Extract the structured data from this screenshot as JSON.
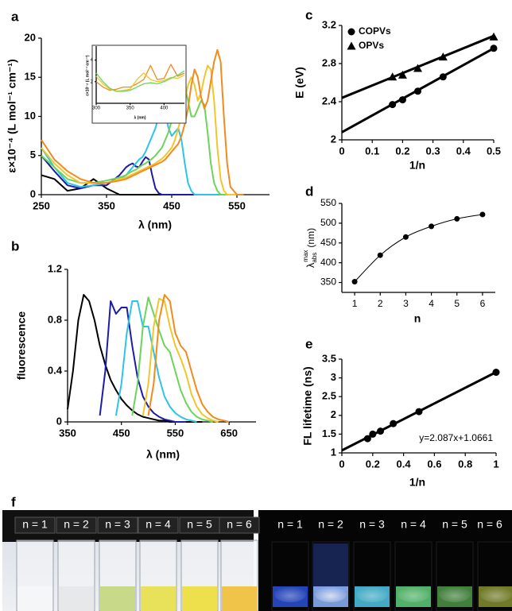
{
  "chart_data": [
    {
      "type": "line",
      "panel": "a",
      "xlabel": "λ (nm)",
      "ylabel": "ε×10⁻⁴ (L mol⁻¹ cm⁻¹)",
      "xlim": [
        250,
        600
      ],
      "xticks": [
        250,
        350,
        450,
        550
      ],
      "ylim": [
        0,
        20
      ],
      "yticks": [
        0,
        5,
        10,
        15,
        20
      ],
      "x": [
        250,
        270,
        290,
        310,
        330,
        350,
        370,
        380,
        385,
        390,
        395,
        400,
        405,
        410,
        415,
        420,
        425,
        430,
        435,
        440,
        445,
        450,
        455,
        460,
        465,
        470,
        475,
        480,
        485,
        490,
        495,
        500,
        505,
        510,
        515,
        520,
        525,
        530,
        535,
        540,
        550,
        560
      ],
      "series": [
        {
          "color": "#000000",
          "values": [
            2.5,
            2,
            0.5,
            0.8,
            2,
            0.8,
            0,
            0,
            0,
            0,
            0,
            0,
            0,
            0,
            0,
            0,
            0,
            0,
            0,
            0,
            0,
            0,
            0,
            0,
            0,
            0,
            0,
            0,
            0,
            0,
            0,
            0,
            0,
            0,
            0,
            0,
            0,
            0,
            0,
            0,
            0,
            0
          ]
        },
        {
          "color": "#1c1ca8",
          "values": [
            5,
            3,
            1.2,
            0.8,
            1.2,
            1.2,
            2.5,
            3.5,
            3.8,
            4,
            3.6,
            3.5,
            4.2,
            4.8,
            4.5,
            2.5,
            0.8,
            0.2,
            0,
            0,
            0,
            0,
            0,
            0,
            0,
            0,
            0,
            0,
            0,
            0,
            0,
            0,
            0,
            0,
            0,
            0,
            0,
            0,
            0,
            0,
            0,
            0
          ]
        },
        {
          "color": "#2ec4e6",
          "values": [
            6,
            3.5,
            1.5,
            1,
            1.2,
            1.5,
            2,
            2.5,
            3,
            3.5,
            4,
            4.5,
            4.8,
            5.5,
            6.5,
            7.5,
            8.5,
            10,
            11,
            10.5,
            8.5,
            7.5,
            8,
            8.5,
            7,
            4,
            1.5,
            0.5,
            0,
            0,
            0,
            0,
            0,
            0,
            0,
            0,
            0,
            0,
            0,
            0,
            0,
            0
          ]
        },
        {
          "color": "#6cd45a",
          "values": [
            5,
            3.5,
            2,
            1.5,
            1.5,
            1.8,
            2.2,
            2.5,
            2.8,
            3,
            3.2,
            3.5,
            3.8,
            4,
            4.3,
            4.6,
            5,
            5.5,
            6,
            7,
            8,
            9.5,
            11,
            12,
            13.5,
            14,
            12,
            10,
            10,
            11,
            12,
            11.5,
            8,
            4,
            1.5,
            0.5,
            0,
            0,
            0,
            0,
            0,
            0
          ]
        },
        {
          "color": "#f2c62b",
          "values": [
            6,
            4,
            2.5,
            1.5,
            1.5,
            1.5,
            2,
            2.2,
            2.4,
            2.6,
            2.8,
            3,
            3.2,
            3.4,
            3.6,
            3.8,
            4,
            4.3,
            4.6,
            5,
            5.5,
            6,
            7,
            8.5,
            10,
            12,
            14,
            15,
            14,
            12,
            13,
            15,
            16.5,
            16,
            12,
            6,
            2,
            0.5,
            0,
            0,
            0,
            0
          ]
        },
        {
          "color": "#f28a1e",
          "values": [
            7,
            4.5,
            3,
            2,
            1.5,
            1.5,
            1.8,
            2,
            2.2,
            2.4,
            2.6,
            2.8,
            3,
            3.2,
            3.4,
            3.6,
            3.8,
            4,
            4.2,
            4.5,
            5,
            5.5,
            6,
            6.5,
            7.5,
            9,
            11,
            14,
            16,
            15,
            12.5,
            11,
            12,
            14.5,
            17,
            18.5,
            17,
            10,
            4,
            1,
            0,
            0
          ]
        }
      ]
    },
    {
      "type": "line",
      "xlabel": "λ (nm)",
      "ylabel": "ε×10⁻⁴ (L mol⁻¹ cm⁻¹)",
      "xlim": [
        300,
        430
      ],
      "xticks": [
        300,
        350,
        400
      ],
      "ylim": [
        0,
        5
      ],
      "yticks": [
        2,
        4
      ],
      "x": [
        300,
        310,
        320,
        330,
        340,
        350,
        360,
        370,
        380,
        390,
        400,
        410,
        420,
        430
      ],
      "series": [
        {
          "color": "#f28a1e",
          "values": [
            2,
            1.5,
            1.2,
            1.3,
            1.5,
            1.5,
            1.8,
            2.2,
            3.5,
            2.2,
            2.3,
            3.6,
            2.5,
            2.8
          ]
        },
        {
          "color": "#f2c62b",
          "values": [
            2.5,
            1.8,
            1.3,
            1.1,
            1.2,
            1.3,
            2.2,
            2.8,
            2.2,
            2,
            2.1,
            2.4,
            2.3,
            2.6
          ]
        },
        {
          "color": "#6cd45a",
          "values": [
            2.8,
            2,
            1.4,
            1.1,
            1.1,
            1.2,
            1.5,
            1.8,
            1.9,
            1.8,
            2,
            2.3,
            2.6,
            3
          ]
        }
      ]
    },
    {
      "type": "line",
      "panel": "b",
      "xlabel": "λ (nm)",
      "ylabel": "fluorescence",
      "xlim": [
        350,
        700
      ],
      "xticks": [
        350,
        450,
        550,
        650
      ],
      "ylim": [
        0,
        1.2
      ],
      "yticks": [
        0,
        0.4,
        0.8,
        1.2
      ],
      "x": [
        350,
        360,
        370,
        380,
        390,
        400,
        410,
        420,
        430,
        440,
        450,
        460,
        470,
        480,
        490,
        500,
        510,
        520,
        530,
        540,
        550,
        560,
        570,
        580,
        590,
        600,
        610,
        620,
        630,
        640,
        650,
        660,
        670,
        680,
        690,
        700
      ],
      "series": [
        {
          "color": "#000000",
          "values": [
            0.1,
            0.4,
            0.8,
            1,
            0.95,
            0.8,
            0.6,
            0.45,
            0.33,
            0.25,
            0.18,
            0.13,
            0.09,
            0.06,
            0.04,
            0.03,
            0.02,
            0.01,
            0.01,
            0,
            0,
            0,
            0,
            0,
            0,
            0,
            null,
            null,
            null,
            null,
            null,
            null,
            null,
            null,
            null,
            null
          ]
        },
        {
          "color": "#1c1ca8",
          "values": [
            null,
            null,
            null,
            null,
            null,
            null,
            0.05,
            0.4,
            0.95,
            0.85,
            0.9,
            0.9,
            0.6,
            0.35,
            0.2,
            0.12,
            0.07,
            0.04,
            0.02,
            0.01,
            0,
            0,
            0,
            null,
            null,
            null,
            null,
            null,
            null,
            null,
            null,
            null,
            null,
            null,
            null,
            null
          ]
        },
        {
          "color": "#2ec4e6",
          "values": [
            null,
            null,
            null,
            null,
            null,
            null,
            null,
            null,
            null,
            0.05,
            0.3,
            0.7,
            0.95,
            0.95,
            0.75,
            0.75,
            0.55,
            0.35,
            0.2,
            0.12,
            0.07,
            0.04,
            0.02,
            0.01,
            0,
            null,
            null,
            null,
            null,
            null,
            null,
            null,
            null,
            null,
            null,
            null
          ]
        },
        {
          "color": "#6cd45a",
          "values": [
            null,
            null,
            null,
            null,
            null,
            null,
            null,
            null,
            null,
            null,
            null,
            null,
            0.05,
            0.3,
            0.75,
            0.98,
            0.85,
            0.72,
            0.6,
            0.55,
            0.4,
            0.25,
            0.15,
            0.08,
            0.04,
            0.02,
            0.01,
            0,
            null,
            null,
            null,
            null,
            null,
            null,
            null,
            null
          ]
        },
        {
          "color": "#f2c62b",
          "values": [
            null,
            null,
            null,
            null,
            null,
            null,
            null,
            null,
            null,
            null,
            null,
            null,
            null,
            null,
            0.05,
            0.3,
            0.75,
            0.97,
            0.95,
            0.75,
            0.6,
            0.5,
            0.38,
            0.22,
            0.12,
            0.06,
            0.03,
            0.01,
            0,
            null,
            null,
            null,
            null,
            null,
            null,
            null
          ]
        },
        {
          "color": "#f28a1e",
          "values": [
            null,
            null,
            null,
            null,
            null,
            null,
            null,
            null,
            null,
            null,
            null,
            null,
            null,
            null,
            null,
            0.05,
            0.3,
            0.8,
            1,
            0.95,
            0.7,
            0.6,
            0.55,
            0.4,
            0.25,
            0.14,
            0.08,
            0.04,
            0.02,
            0.01,
            0,
            null,
            null,
            null,
            null,
            null
          ]
        }
      ]
    },
    {
      "type": "scatter",
      "panel": "c",
      "xlabel": "1/n",
      "ylabel": "E (eV)",
      "legend": "upper left",
      "xlim": [
        0,
        0.5
      ],
      "xticks": [
        0,
        0.1,
        0.2,
        0.3,
        0.4,
        0.5
      ],
      "ylim": [
        2,
        3.2
      ],
      "yticks": [
        2,
        2.4,
        2.8,
        3.2
      ],
      "series": [
        {
          "name": "COPVs",
          "color": "#000000",
          "marker": "circle",
          "x": [
            0.1667,
            0.2,
            0.25,
            0.3333,
            0.5
          ],
          "values": [
            2.37,
            2.42,
            2.51,
            2.66,
            2.96
          ],
          "fit": {
            "x": [
              0,
              0.5
            ],
            "y": [
              2.08,
              2.96
            ]
          }
        },
        {
          "name": "OPVs",
          "color": "#000000",
          "marker": "triangle",
          "x": [
            0.1667,
            0.2,
            0.25,
            0.3333,
            0.5
          ],
          "values": [
            2.66,
            2.68,
            2.75,
            2.87,
            3.08
          ],
          "fit": {
            "x": [
              0,
              0.5
            ],
            "y": [
              2.44,
              3.09
            ]
          }
        }
      ]
    },
    {
      "type": "scatter",
      "panel": "d",
      "xlabel": "n",
      "ylabel": "λ",
      "ylabel_sub": "abs",
      "ylabel_sup": "max",
      "ylabel_unit": "(nm)",
      "curve": true,
      "xlim": [
        0.5,
        6.5
      ],
      "xticks": [
        1,
        2,
        3,
        4,
        5,
        6
      ],
      "ylim": [
        325,
        550
      ],
      "yticks": [
        350,
        400,
        450,
        500,
        550
      ],
      "series": [
        {
          "color": "#000000",
          "marker": "circle",
          "x": [
            1,
            2,
            3,
            4,
            5,
            6
          ],
          "values": [
            352,
            419,
            465,
            492,
            511,
            522
          ]
        }
      ]
    },
    {
      "type": "scatter",
      "panel": "e",
      "xlabel": "1/n",
      "ylabel": "FL lifetime (ns)",
      "annotation": "y=2.087x+1.0661",
      "xlim": [
        0,
        1
      ],
      "xticks": [
        0,
        0.2,
        0.4,
        0.6,
        0.8,
        1
      ],
      "ylim": [
        1,
        3.5
      ],
      "yticks": [
        1,
        1.5,
        2,
        2.5,
        3,
        3.5
      ],
      "series": [
        {
          "color": "#000000",
          "marker": "circle",
          "x": [
            0.1667,
            0.2,
            0.25,
            0.3333,
            0.5,
            1
          ],
          "values": [
            1.38,
            1.5,
            1.58,
            1.78,
            2.1,
            3.15
          ],
          "fit": {
            "x": [
              0,
              1
            ],
            "y": [
              1.0661,
              3.1531
            ]
          }
        }
      ]
    }
  ],
  "photos": {
    "panel": "f",
    "left": [
      "n = 1",
      "n = 2",
      "n = 3",
      "n = 4",
      "n = 5",
      "n = 6"
    ],
    "right": [
      "n = 1",
      "n = 2",
      "n = 3",
      "n = 4",
      "n = 5",
      "n = 6"
    ]
  }
}
